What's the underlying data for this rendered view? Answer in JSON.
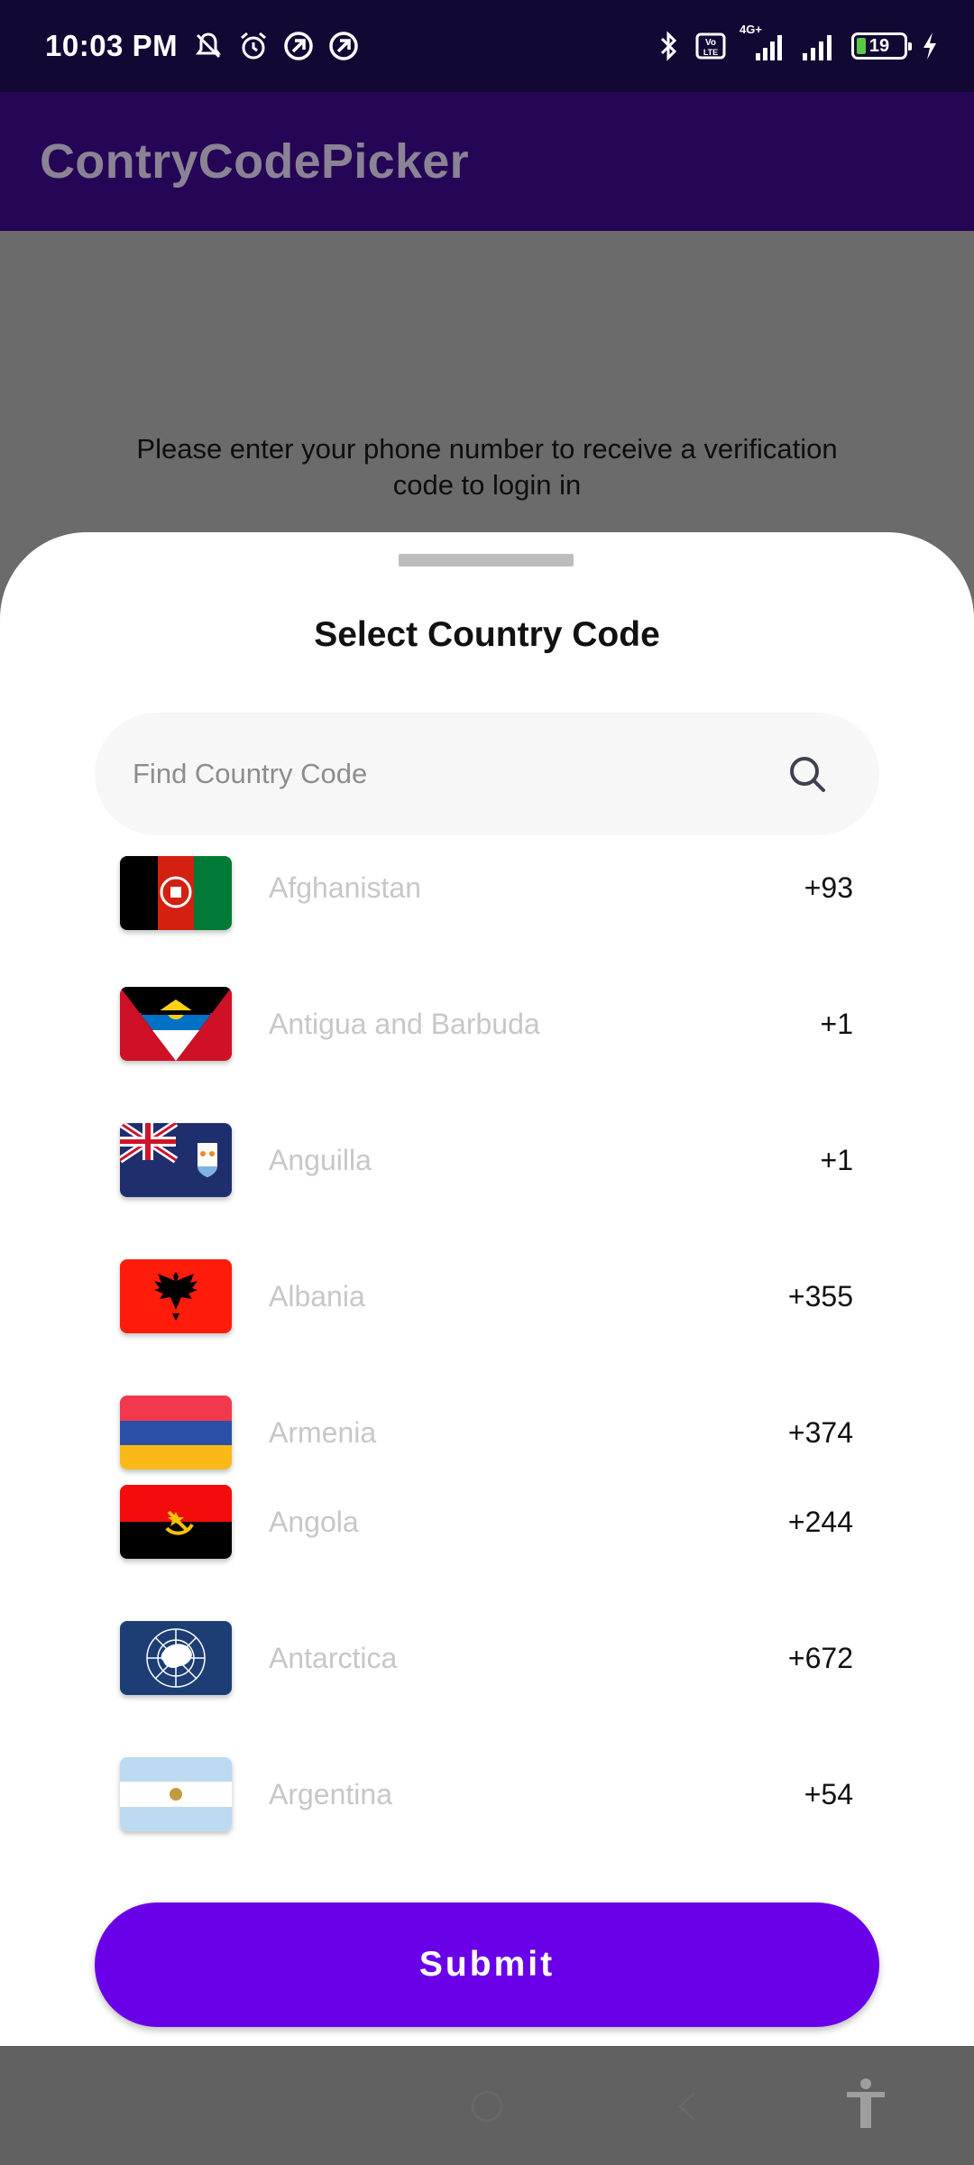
{
  "status_bar": {
    "time": "10:03 PM",
    "battery_level": "19",
    "network_type": "4G+",
    "left_icons": [
      "mute-icon",
      "alarm-icon",
      "app-notification-icon",
      "app-notification-icon"
    ],
    "right_icons": [
      "bluetooth-icon",
      "volte-icon",
      "signal-icon",
      "signal-icon",
      "battery-icon",
      "charging-icon"
    ]
  },
  "app_bar": {
    "title": "ContryCodePicker"
  },
  "background": {
    "instructions": "Please enter your phone number to receive a verification code to login in"
  },
  "sheet": {
    "title": "Select Country Code",
    "search": {
      "placeholder": "Find Country Code",
      "value": ""
    },
    "countries": [
      {
        "name": "Afghanistan",
        "code": "+93",
        "flag": "afghanistan-flag"
      },
      {
        "name": "Antigua and Barbuda",
        "code": "+1",
        "flag": "antigua-and-barbuda-flag"
      },
      {
        "name": "Anguilla",
        "code": "+1",
        "flag": "anguilla-flag"
      },
      {
        "name": "Albania",
        "code": "+355",
        "flag": "albania-flag"
      },
      {
        "name": "Armenia",
        "code": "+374",
        "flag": "armenia-flag"
      },
      {
        "name": "Angola",
        "code": "+244",
        "flag": "angola-flag"
      },
      {
        "name": "Antarctica",
        "code": "+672",
        "flag": "antarctica-flag"
      },
      {
        "name": "Argentina",
        "code": "+54",
        "flag": "argentina-flag"
      }
    ],
    "submit_label": "Submit"
  },
  "colors": {
    "status_bar": "#130834",
    "app_bar": "#240556",
    "accent": "#6a00e8",
    "scrim": "#6b6b6b",
    "country_name": "#c7c7c7"
  }
}
